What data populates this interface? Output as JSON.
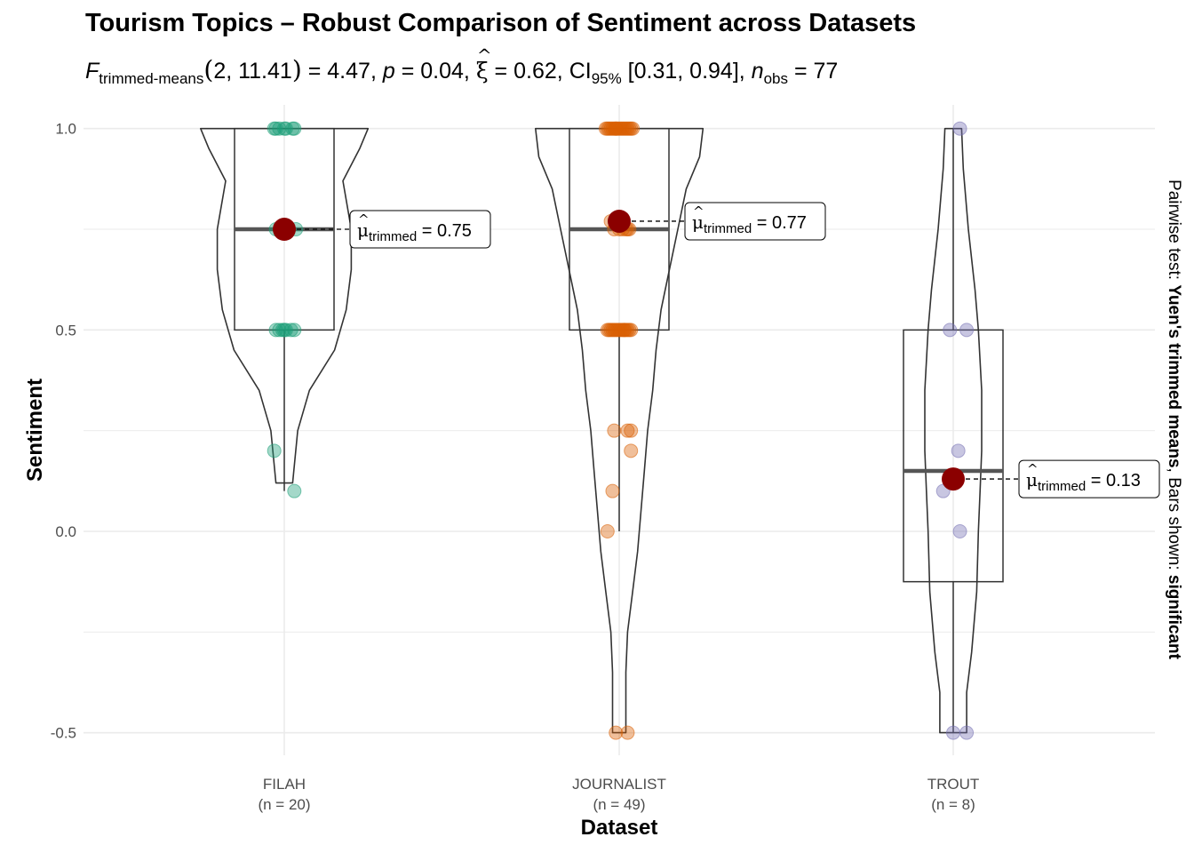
{
  "title": "Tourism Topics – Robust Comparison of Sentiment across Datasets",
  "subtitle": {
    "f_label": "F",
    "f_sub": "trimmed-means",
    "df": "2, 11.41",
    "f_value": "4.47",
    "p_value": "0.04",
    "effect_value": "0.62",
    "ci_label": "CI",
    "ci_sub": "95%",
    "ci": "[0.31, 0.94]",
    "n_sub": "obs",
    "n_value": "77"
  },
  "caption": {
    "prefix": "Pairwise test: ",
    "test": "Yuen's trimmed means",
    "middle": ", Bars shown: ",
    "shown": "significant"
  },
  "colors": {
    "filah": "#1b9e77",
    "journalist": "#d95f02",
    "trout": "#7570b3",
    "mean_point": "#8b0000",
    "grid": "#ebebeb",
    "outline": "#333333"
  },
  "chart_data": {
    "type": "violin-box-scatter",
    "xlabel": "Dataset",
    "ylabel": "Sentiment",
    "ylim": [
      -0.6,
      1.05
    ],
    "yticks": [
      -0.5,
      0.0,
      0.5,
      1.0
    ],
    "ytick_labels": [
      "-0.5",
      "0.0",
      "0.5",
      "1.0"
    ],
    "grid": true,
    "categories": [
      "FILAH",
      "JOURNALIST",
      "TROUT"
    ],
    "category_counts": [
      "(n = 20)",
      "(n = 49)",
      "(n = 8)"
    ],
    "groups": [
      {
        "name": "FILAH",
        "color_key": "filah",
        "box": {
          "q1": 0.5,
          "median": 0.75,
          "q3": 1.0,
          "whisker_low": 0.1,
          "whisker_high": 1.0
        },
        "violin": {
          "range": [
            0.1,
            1.0
          ],
          "width_profile": [
            [
              1.0,
              0.5
            ],
            [
              0.95,
              0.45
            ],
            [
              0.87,
              0.35
            ],
            [
              0.75,
              0.4
            ],
            [
              0.65,
              0.4
            ],
            [
              0.55,
              0.37
            ],
            [
              0.45,
              0.3
            ],
            [
              0.35,
              0.15
            ],
            [
              0.25,
              0.08
            ],
            [
              0.12,
              0.05
            ]
          ]
        },
        "trimmed_mean": 0.75,
        "mean_label": "0.75",
        "points": [
          {
            "x_offset": -0.06,
            "y": 1.0
          },
          {
            "x_offset": -0.05,
            "y": 1.0
          },
          {
            "x_offset": -0.03,
            "y": 1.0
          },
          {
            "x_offset": 0.0,
            "y": 1.0
          },
          {
            "x_offset": 0.01,
            "y": 1.0
          },
          {
            "x_offset": 0.05,
            "y": 1.0
          },
          {
            "x_offset": 0.06,
            "y": 1.0
          },
          {
            "x_offset": -0.05,
            "y": 0.75
          },
          {
            "x_offset": 0.0,
            "y": 0.75
          },
          {
            "x_offset": 0.02,
            "y": 0.75
          },
          {
            "x_offset": 0.07,
            "y": 0.75
          },
          {
            "x_offset": -0.05,
            "y": 0.5
          },
          {
            "x_offset": -0.03,
            "y": 0.5
          },
          {
            "x_offset": -0.01,
            "y": 0.5
          },
          {
            "x_offset": 0.0,
            "y": 0.5
          },
          {
            "x_offset": 0.01,
            "y": 0.5
          },
          {
            "x_offset": 0.06,
            "y": 0.5
          },
          {
            "x_offset": -0.06,
            "y": 0.2
          },
          {
            "x_offset": 0.06,
            "y": 0.1
          },
          {
            "x_offset": 0.04,
            "y": 0.5
          }
        ]
      },
      {
        "name": "JOURNALIST",
        "color_key": "journalist",
        "box": {
          "q1": 0.5,
          "median": 0.75,
          "q3": 1.0,
          "whisker_low": 0.0,
          "whisker_high": 1.0
        },
        "violin": {
          "range": [
            -0.5,
            1.0
          ],
          "width_profile": [
            [
              1.0,
              0.5
            ],
            [
              0.93,
              0.48
            ],
            [
              0.85,
              0.4
            ],
            [
              0.75,
              0.35
            ],
            [
              0.65,
              0.3
            ],
            [
              0.55,
              0.25
            ],
            [
              0.45,
              0.22
            ],
            [
              0.35,
              0.2
            ],
            [
              0.25,
              0.17
            ],
            [
              0.15,
              0.15
            ],
            [
              0.05,
              0.13
            ],
            [
              -0.05,
              0.11
            ],
            [
              -0.15,
              0.08
            ],
            [
              -0.25,
              0.05
            ],
            [
              -0.35,
              0.04
            ],
            [
              -0.45,
              0.04
            ],
            [
              -0.5,
              0.04
            ]
          ]
        },
        "trimmed_mean": 0.77,
        "mean_label": "0.77",
        "points": [
          {
            "x_offset": -0.08,
            "y": 1.0
          },
          {
            "x_offset": -0.07,
            "y": 1.0
          },
          {
            "x_offset": -0.06,
            "y": 1.0
          },
          {
            "x_offset": -0.05,
            "y": 1.0
          },
          {
            "x_offset": -0.04,
            "y": 1.0
          },
          {
            "x_offset": -0.03,
            "y": 1.0
          },
          {
            "x_offset": -0.02,
            "y": 1.0
          },
          {
            "x_offset": -0.01,
            "y": 1.0
          },
          {
            "x_offset": 0.0,
            "y": 1.0
          },
          {
            "x_offset": 0.01,
            "y": 1.0
          },
          {
            "x_offset": 0.02,
            "y": 1.0
          },
          {
            "x_offset": 0.03,
            "y": 1.0
          },
          {
            "x_offset": 0.04,
            "y": 1.0
          },
          {
            "x_offset": 0.05,
            "y": 1.0
          },
          {
            "x_offset": 0.06,
            "y": 1.0
          },
          {
            "x_offset": 0.07,
            "y": 1.0
          },
          {
            "x_offset": 0.08,
            "y": 1.0
          },
          {
            "x_offset": -0.05,
            "y": 0.77
          },
          {
            "x_offset": -0.03,
            "y": 0.75
          },
          {
            "x_offset": 0.0,
            "y": 0.75
          },
          {
            "x_offset": 0.02,
            "y": 0.75
          },
          {
            "x_offset": 0.04,
            "y": 0.75
          },
          {
            "x_offset": 0.06,
            "y": 0.75
          },
          {
            "x_offset": -0.07,
            "y": 0.5
          },
          {
            "x_offset": -0.06,
            "y": 0.5
          },
          {
            "x_offset": -0.05,
            "y": 0.5
          },
          {
            "x_offset": -0.04,
            "y": 0.5
          },
          {
            "x_offset": -0.03,
            "y": 0.5
          },
          {
            "x_offset": -0.02,
            "y": 0.5
          },
          {
            "x_offset": -0.01,
            "y": 0.5
          },
          {
            "x_offset": 0.0,
            "y": 0.5
          },
          {
            "x_offset": 0.01,
            "y": 0.5
          },
          {
            "x_offset": 0.02,
            "y": 0.5
          },
          {
            "x_offset": 0.03,
            "y": 0.5
          },
          {
            "x_offset": 0.04,
            "y": 0.5
          },
          {
            "x_offset": 0.05,
            "y": 0.5
          },
          {
            "x_offset": 0.06,
            "y": 0.5
          },
          {
            "x_offset": 0.07,
            "y": 0.5
          },
          {
            "x_offset": -0.03,
            "y": 0.25
          },
          {
            "x_offset": 0.05,
            "y": 0.25
          },
          {
            "x_offset": 0.07,
            "y": 0.25
          },
          {
            "x_offset": 0.07,
            "y": 0.2
          },
          {
            "x_offset": -0.04,
            "y": 0.1
          },
          {
            "x_offset": -0.07,
            "y": 0.0
          },
          {
            "x_offset": -0.02,
            "y": -0.5
          },
          {
            "x_offset": 0.05,
            "y": -0.5
          },
          {
            "x_offset": -0.02,
            "y": 1.0
          },
          {
            "x_offset": 0.03,
            "y": 0.5
          },
          {
            "x_offset": 0.05,
            "y": 0.75
          }
        ]
      },
      {
        "name": "TROUT",
        "color_key": "trout",
        "box": {
          "q1": -0.125,
          "median": 0.15,
          "q3": 0.5,
          "whisker_low": -0.5,
          "whisker_high": 1.0
        },
        "violin": {
          "range": [
            -0.5,
            1.0
          ],
          "width_profile": [
            [
              1.0,
              0.05
            ],
            [
              0.9,
              0.06
            ],
            [
              0.75,
              0.09
            ],
            [
              0.6,
              0.13
            ],
            [
              0.5,
              0.15
            ],
            [
              0.35,
              0.17
            ],
            [
              0.2,
              0.17
            ],
            [
              0.1,
              0.16
            ],
            [
              0.0,
              0.15
            ],
            [
              -0.15,
              0.14
            ],
            [
              -0.3,
              0.11
            ],
            [
              -0.4,
              0.08
            ],
            [
              -0.5,
              0.08
            ]
          ]
        },
        "trimmed_mean": 0.13,
        "mean_label": "0.13",
        "points": [
          {
            "x_offset": 0.04,
            "y": 1.0
          },
          {
            "x_offset": -0.02,
            "y": 0.5
          },
          {
            "x_offset": 0.08,
            "y": 0.5
          },
          {
            "x_offset": 0.03,
            "y": 0.2
          },
          {
            "x_offset": -0.06,
            "y": 0.1
          },
          {
            "x_offset": 0.04,
            "y": 0.0
          },
          {
            "x_offset": 0.0,
            "y": -0.5
          },
          {
            "x_offset": 0.08,
            "y": -0.5
          }
        ]
      }
    ],
    "mean_label_prefix": "trimmed"
  }
}
